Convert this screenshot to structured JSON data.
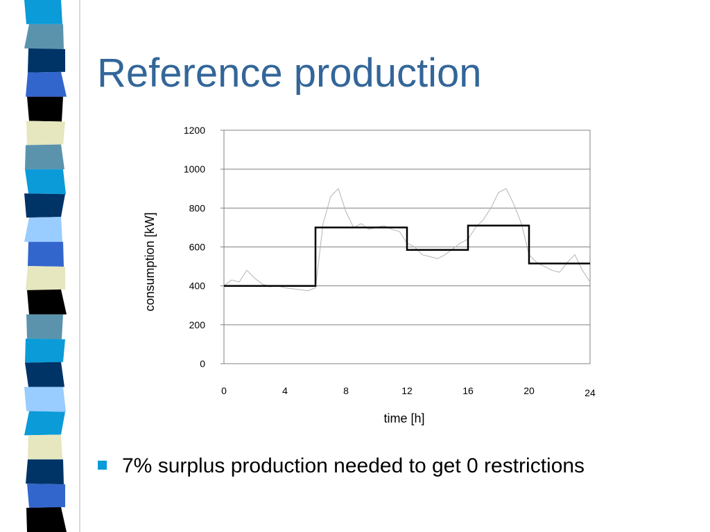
{
  "slide": {
    "title": "Reference production",
    "bullet": "7% surplus production needed to get 0 restrictions",
    "accent_color": "#336699",
    "bullet_color": "#0a9bd8",
    "stripe_colors": [
      "#0a9bd8",
      "#5b93ad",
      "#003366",
      "#3366cc",
      "#000000",
      "#e6e6bf",
      "#5b93ad",
      "#0a9bd8",
      "#003366",
      "#99ccff",
      "#3366cc",
      "#e6e6bf",
      "#000000",
      "#5b93ad",
      "#0a9bd8",
      "#003366",
      "#99ccff",
      "#0a9bd8",
      "#e6e6bf",
      "#003366",
      "#3366cc",
      "#000000"
    ]
  },
  "chart_data": {
    "type": "line",
    "xlabel": "time [h]",
    "ylabel": "consumption [kW]",
    "xlim": [
      0,
      24
    ],
    "ylim": [
      0,
      1200
    ],
    "x_ticks": [
      0,
      4,
      8,
      12,
      16,
      20,
      24
    ],
    "y_ticks": [
      0,
      200,
      400,
      600,
      800,
      1000,
      1200
    ],
    "grid": true,
    "series": [
      {
        "role": "reference production (step)",
        "color": "#000000",
        "x": [
          0,
          6,
          6,
          12,
          12,
          16,
          16,
          20,
          20,
          24
        ],
        "y": [
          400,
          400,
          700,
          700,
          585,
          585,
          710,
          710,
          515,
          515
        ]
      },
      {
        "role": "measured consumption",
        "color": "#b3b3b3",
        "x": [
          0,
          0.5,
          1,
          1.5,
          2,
          2.5,
          3,
          3.5,
          4,
          4.5,
          5,
          5.5,
          6,
          6.5,
          7,
          7.5,
          8,
          8.5,
          9,
          9.5,
          10,
          10.5,
          11,
          11.5,
          12,
          12.5,
          13,
          13.5,
          14,
          14.5,
          15,
          15.5,
          16,
          16.5,
          17,
          17.5,
          18,
          18.5,
          19,
          19.5,
          20,
          20.5,
          21,
          21.5,
          22,
          22.5,
          23,
          23.5,
          24
        ],
        "y": [
          400,
          430,
          420,
          480,
          440,
          410,
          395,
          400,
          390,
          385,
          380,
          375,
          390,
          720,
          860,
          900,
          780,
          700,
          720,
          690,
          700,
          710,
          690,
          680,
          620,
          600,
          560,
          550,
          540,
          560,
          590,
          620,
          640,
          700,
          740,
          800,
          880,
          900,
          820,
          720,
          560,
          520,
          500,
          480,
          470,
          520,
          560,
          480,
          420
        ]
      }
    ]
  }
}
